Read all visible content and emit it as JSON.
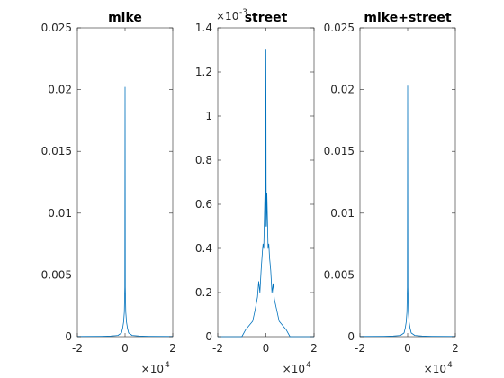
{
  "chart_data": [
    {
      "type": "line",
      "title": "mike",
      "xlim": [
        -2,
        2
      ],
      "ylim": [
        0,
        0.025
      ],
      "x_ticks": [
        "-2",
        "0",
        "2"
      ],
      "y_ticks": [
        "0",
        "0.005",
        "0.01",
        "0.015",
        "0.02",
        "0.025"
      ],
      "x_multiplier": {
        "base": "×10",
        "exp": "4"
      },
      "y_multiplier": null,
      "series": [
        {
          "color": "#0072BD",
          "x": [
            -2.0,
            -1.0,
            -0.6,
            -0.3,
            -0.15,
            -0.1,
            -0.06,
            -0.03,
            -0.01,
            0.0,
            0.01,
            0.03,
            0.06,
            0.1,
            0.15,
            0.3,
            0.6,
            1.0,
            2.0
          ],
          "y": [
            2e-05,
            3e-05,
            5e-05,
            0.0001,
            0.0003,
            0.0007,
            0.0012,
            0.002,
            0.004,
            0.0202,
            0.004,
            0.002,
            0.0012,
            0.0007,
            0.0003,
            0.0001,
            5e-05,
            3e-05,
            2e-05
          ]
        }
      ]
    },
    {
      "type": "line",
      "title": "street",
      "xlim": [
        -2,
        2
      ],
      "ylim": [
        0,
        1.4
      ],
      "x_ticks": [
        "-2",
        "0",
        "2"
      ],
      "y_ticks": [
        "0",
        "0.2",
        "0.4",
        "0.6",
        "0.8",
        "1",
        "1.2",
        "1.4"
      ],
      "x_multiplier": {
        "base": "×10",
        "exp": "4"
      },
      "y_multiplier": {
        "base": "×10",
        "exp": "-3"
      },
      "series": [
        {
          "color": "#0072BD",
          "x": [
            -2.0,
            -1.0,
            -0.85,
            -0.7,
            -0.55,
            -0.45,
            -0.35,
            -0.3,
            -0.25,
            -0.2,
            -0.15,
            -0.12,
            -0.09,
            -0.06,
            -0.04,
            -0.02,
            -0.01,
            0.0,
            0.01,
            0.02,
            0.04,
            0.06,
            0.09,
            0.12,
            0.15,
            0.2,
            0.25,
            0.3,
            0.35,
            0.45,
            0.55,
            0.7,
            0.85,
            1.0,
            2.0
          ],
          "y": [
            0.0,
            0.0,
            0.03,
            0.05,
            0.07,
            0.12,
            0.18,
            0.25,
            0.2,
            0.3,
            0.38,
            0.42,
            0.4,
            0.55,
            0.65,
            0.5,
            0.7,
            1.3,
            0.7,
            0.5,
            0.65,
            0.55,
            0.4,
            0.42,
            0.36,
            0.3,
            0.2,
            0.24,
            0.17,
            0.12,
            0.07,
            0.05,
            0.03,
            0.0,
            0.0
          ]
        }
      ]
    },
    {
      "type": "line",
      "title": "mike+street",
      "xlim": [
        -2,
        2
      ],
      "ylim": [
        0,
        0.025
      ],
      "x_ticks": [
        "-2",
        "0",
        "2"
      ],
      "y_ticks": [
        "0",
        "0.005",
        "0.01",
        "0.015",
        "0.02",
        "0.025"
      ],
      "x_multiplier": {
        "base": "×10",
        "exp": "4"
      },
      "y_multiplier": null,
      "series": [
        {
          "color": "#0072BD",
          "x": [
            -2.0,
            -1.0,
            -0.6,
            -0.3,
            -0.15,
            -0.1,
            -0.06,
            -0.03,
            -0.01,
            0.0,
            0.01,
            0.03,
            0.06,
            0.1,
            0.15,
            0.3,
            0.6,
            1.0,
            2.0
          ],
          "y": [
            2e-05,
            3e-05,
            5e-05,
            0.0001,
            0.0003,
            0.0007,
            0.0012,
            0.002,
            0.004,
            0.0203,
            0.004,
            0.002,
            0.0012,
            0.0007,
            0.0003,
            0.0001,
            5e-05,
            3e-05,
            2e-05
          ]
        }
      ]
    }
  ]
}
